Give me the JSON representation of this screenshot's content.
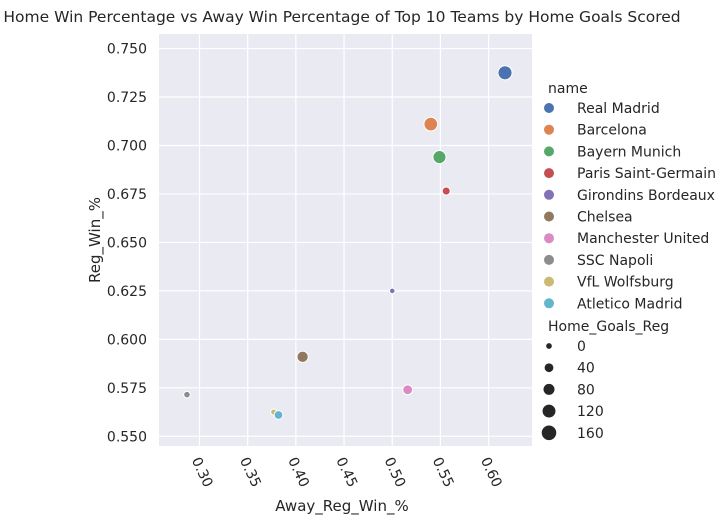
{
  "chart_data": {
    "type": "scatter",
    "title": "Home Win Percentage vs Away Win Percentage of Top 10 Teams by Home Goals Scored",
    "xlabel": "Away_Reg_Win_%",
    "ylabel": "Reg_Win_%",
    "xlim": [
      0.258,
      0.645
    ],
    "ylim": [
      0.545,
      0.7575
    ],
    "x_ticks": [
      "0.30",
      "0.35",
      "0.40",
      "0.45",
      "0.50",
      "0.55",
      "0.60"
    ],
    "y_ticks": [
      "0.550",
      "0.575",
      "0.600",
      "0.625",
      "0.650",
      "0.675",
      "0.700",
      "0.725",
      "0.750"
    ],
    "grid": true,
    "legend_position": "right",
    "hue_legend_title": "name",
    "size_legend_title": "Home_Goals_Reg",
    "size_legend_entries": [
      {
        "label": "0",
        "value": 0
      },
      {
        "label": "40",
        "value": 40
      },
      {
        "label": "80",
        "value": 80
      },
      {
        "label": "120",
        "value": 120
      },
      {
        "label": "160",
        "value": 160
      }
    ],
    "series": [
      {
        "name": "Real Madrid",
        "color": "#4c72b0",
        "x": 0.617,
        "y": 0.7375,
        "size": 150
      },
      {
        "name": "Barcelona",
        "color": "#dd8452",
        "x": 0.54,
        "y": 0.711,
        "size": 140
      },
      {
        "name": "Bayern Munich",
        "color": "#55a868",
        "x": 0.549,
        "y": 0.694,
        "size": 125
      },
      {
        "name": "Paris Saint-Germain",
        "color": "#c44e52",
        "x": 0.556,
        "y": 0.6765,
        "size": 30
      },
      {
        "name": "Girondins Bordeaux",
        "color": "#8172b3",
        "x": 0.5,
        "y": 0.625,
        "size": 0
      },
      {
        "name": "Chelsea",
        "color": "#937860",
        "x": 0.407,
        "y": 0.591,
        "size": 85
      },
      {
        "name": "Manchester United",
        "color": "#da8bc3",
        "x": 0.516,
        "y": 0.574,
        "size": 58
      },
      {
        "name": "SSC Napoli",
        "color": "#8c8c8c",
        "x": 0.287,
        "y": 0.5715,
        "size": 10
      },
      {
        "name": "VfL Wolfsburg",
        "color": "#ccb974",
        "x": 0.377,
        "y": 0.5625,
        "size": 5
      },
      {
        "name": "Atletico Madrid",
        "color": "#64b5cd",
        "x": 0.382,
        "y": 0.561,
        "size": 40
      }
    ]
  }
}
